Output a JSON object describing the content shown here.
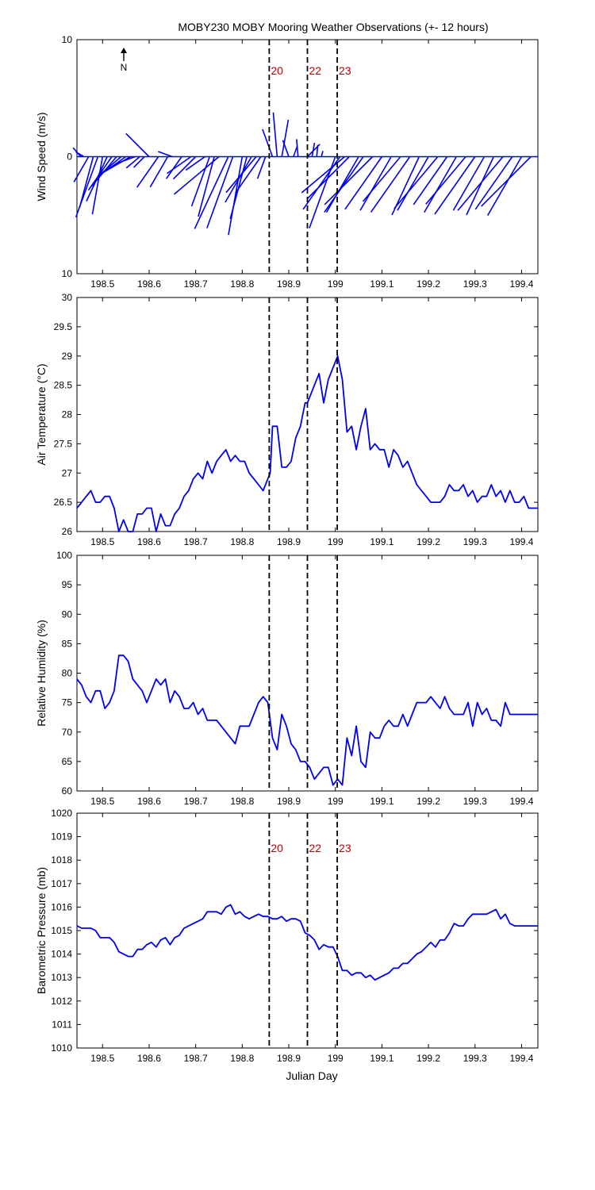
{
  "title": "MOBY230 MOBY Mooring Weather Observations (+- 12 hours)",
  "xlabel": "Julian Day",
  "north_label": "N",
  "colors": {
    "series": "#0000ee",
    "marker_line": "#000000",
    "marker_label": "#c00000"
  },
  "x_tick_labels": [
    "198.5",
    "198.6",
    "198.7",
    "198.8",
    "198.9",
    "199",
    "199.1",
    "199.2",
    "199.3",
    "199.4"
  ],
  "chart_data": [
    {
      "type": "line",
      "subtype": "wind-vector",
      "ylabel": "Wind Speed (m/s)",
      "xlim": [
        198.445,
        199.435
      ],
      "ylim": [
        -10,
        10
      ],
      "ytick_labels": [
        "10",
        "0",
        "10"
      ],
      "markers": [
        {
          "x": 198.858,
          "label": "20"
        },
        {
          "x": 198.94,
          "label": "22"
        },
        {
          "x": 199.004,
          "label": "23"
        }
      ],
      "series": [
        {
          "x": [
            198.453,
            198.46,
            198.47,
            198.48,
            198.49,
            198.5,
            198.51,
            198.52,
            198.53,
            198.54,
            198.55,
            198.56,
            198.57,
            198.58,
            198.59,
            198.6,
            198.62,
            198.64,
            198.65,
            198.67,
            198.69,
            198.7,
            198.72,
            198.73,
            198.74,
            198.75,
            198.77,
            198.78,
            198.8,
            198.81,
            198.82,
            198.83,
            198.84,
            198.85,
            198.865,
            198.875,
            198.885,
            198.9,
            198.91,
            198.92,
            198.94,
            198.95,
            198.96,
            198.97,
            199.0,
            199.01,
            199.02,
            199.03,
            199.05,
            199.06,
            199.08,
            199.1,
            199.12,
            199.14,
            199.16,
            199.18,
            199.2,
            199.22,
            199.24,
            199.26,
            199.28,
            199.3,
            199.32,
            199.34,
            199.36,
            199.38,
            199.4,
            199.42
          ],
          "dir": [
            320,
            300,
            210,
            195,
            200,
            190,
            205,
            215,
            220,
            230,
            235,
            240,
            250,
            230,
            225,
            315,
            215,
            210,
            290,
            215,
            235,
            225,
            235,
            200,
            195,
            230,
            205,
            200,
            190,
            195,
            210,
            220,
            215,
            200,
            340,
            355,
            10,
            340,
            20,
            355,
            45,
            10,
            5,
            15,
            200,
            215,
            230,
            225,
            210,
            215,
            225,
            215,
            210,
            220,
            215,
            205,
            210,
            220,
            215,
            210,
            220,
            215,
            210,
            205,
            220,
            215,
            210,
            225
          ],
          "speed": [
            1.0,
            0.8,
            2.5,
            4.5,
            5.5,
            5.0,
            4.2,
            3.5,
            3.3,
            2.5,
            2.2,
            2.8,
            1.7,
            1.5,
            1.3,
            2.8,
            3.2,
            3.0,
            1.3,
            2.3,
            2.5,
            2.7,
            2.0,
            4.5,
            5.3,
            5.0,
            6.8,
            6.5,
            6.8,
            5.5,
            4.5,
            4.0,
            3.8,
            2.0,
            2.5,
            3.8,
            3.2,
            1.5,
            1.0,
            1.5,
            1.5,
            1.2,
            1.0,
            0.5,
            6.5,
            5.5,
            4.8,
            5.0,
            5.5,
            5.8,
            5.8,
            5.5,
            5.3,
            5.0,
            5.8,
            5.5,
            5.3,
            5.8,
            5.0,
            5.5,
            5.3,
            6.0,
            5.3,
            5.5,
            6.0,
            5.5,
            5.8,
            6.0
          ]
        }
      ]
    },
    {
      "type": "line",
      "ylabel": "Air Temperature (°C)",
      "xlim": [
        198.445,
        199.435
      ],
      "ylim": [
        26,
        30
      ],
      "ytick_labels": [
        "26",
        "26.5",
        "27",
        "27.5",
        "28",
        "28.5",
        "29",
        "29.5",
        "30"
      ],
      "markers": [
        {
          "x": 198.858,
          "label": ""
        },
        {
          "x": 198.94,
          "label": ""
        },
        {
          "x": 199.004,
          "label": ""
        }
      ],
      "series": [
        {
          "x": [
            198.445,
            198.455,
            198.465,
            198.475,
            198.485,
            198.495,
            198.505,
            198.515,
            198.525,
            198.535,
            198.545,
            198.555,
            198.565,
            198.575,
            198.585,
            198.595,
            198.605,
            198.615,
            198.625,
            198.635,
            198.645,
            198.655,
            198.665,
            198.675,
            198.685,
            198.695,
            198.705,
            198.715,
            198.725,
            198.735,
            198.745,
            198.755,
            198.765,
            198.775,
            198.785,
            198.795,
            198.805,
            198.815,
            198.825,
            198.835,
            198.845,
            198.855,
            198.86,
            198.865,
            198.875,
            198.885,
            198.895,
            198.905,
            198.915,
            198.925,
            198.935,
            198.94,
            198.945,
            198.955,
            198.965,
            198.975,
            198.985,
            198.995,
            199.005,
            199.015,
            199.025,
            199.035,
            199.045,
            199.055,
            199.065,
            199.075,
            199.085,
            199.095,
            199.105,
            199.115,
            199.125,
            199.135,
            199.145,
            199.155,
            199.165,
            199.175,
            199.185,
            199.195,
            199.205,
            199.215,
            199.225,
            199.235,
            199.245,
            199.255,
            199.265,
            199.275,
            199.285,
            199.295,
            199.305,
            199.315,
            199.325,
            199.335,
            199.345,
            199.355,
            199.365,
            199.375,
            199.385,
            199.395,
            199.405,
            199.415,
            199.425,
            199.435
          ],
          "values": [
            26.4,
            26.5,
            26.6,
            26.7,
            26.5,
            26.5,
            26.6,
            26.6,
            26.4,
            26.0,
            26.2,
            26.0,
            26.0,
            26.3,
            26.3,
            26.4,
            26.4,
            26.0,
            26.3,
            26.1,
            26.1,
            26.3,
            26.4,
            26.6,
            26.7,
            26.9,
            27.0,
            26.9,
            27.2,
            27.0,
            27.2,
            27.3,
            27.4,
            27.2,
            27.3,
            27.2,
            27.2,
            27.0,
            26.9,
            26.8,
            26.7,
            26.9,
            27.0,
            27.8,
            27.8,
            27.1,
            27.1,
            27.2,
            27.6,
            27.8,
            28.2,
            28.2,
            28.3,
            28.5,
            28.7,
            28.2,
            28.6,
            28.8,
            29.0,
            28.6,
            27.7,
            27.8,
            27.4,
            27.8,
            28.1,
            27.4,
            27.5,
            27.4,
            27.4,
            27.1,
            27.4,
            27.3,
            27.1,
            27.2,
            27.0,
            26.8,
            26.7,
            26.6,
            26.5,
            26.5,
            26.5,
            26.6,
            26.8,
            26.7,
            26.7,
            26.8,
            26.6,
            26.7,
            26.5,
            26.6,
            26.6,
            26.8,
            26.6,
            26.7,
            26.5,
            26.7,
            26.5,
            26.5,
            26.6,
            26.4,
            26.4,
            26.4
          ]
        }
      ]
    },
    {
      "type": "line",
      "ylabel": "Relative Humidity (%)",
      "xlim": [
        198.445,
        199.435
      ],
      "ylim": [
        60,
        100
      ],
      "ytick_labels": [
        "60",
        "65",
        "70",
        "75",
        "80",
        "85",
        "90",
        "95",
        "100"
      ],
      "markers": [
        {
          "x": 198.858,
          "label": ""
        },
        {
          "x": 198.94,
          "label": ""
        },
        {
          "x": 199.004,
          "label": ""
        }
      ],
      "series": [
        {
          "x": [
            198.445,
            198.455,
            198.465,
            198.475,
            198.485,
            198.495,
            198.505,
            198.515,
            198.525,
            198.535,
            198.545,
            198.555,
            198.565,
            198.575,
            198.585,
            198.595,
            198.605,
            198.615,
            198.625,
            198.635,
            198.645,
            198.655,
            198.665,
            198.675,
            198.685,
            198.695,
            198.705,
            198.715,
            198.725,
            198.735,
            198.745,
            198.755,
            198.765,
            198.775,
            198.785,
            198.795,
            198.805,
            198.815,
            198.825,
            198.835,
            198.845,
            198.855,
            198.865,
            198.875,
            198.885,
            198.895,
            198.905,
            198.915,
            198.925,
            198.935,
            198.945,
            198.955,
            198.965,
            198.975,
            198.985,
            198.995,
            199.005,
            199.015,
            199.025,
            199.035,
            199.045,
            199.055,
            199.065,
            199.075,
            199.085,
            199.095,
            199.105,
            199.115,
            199.125,
            199.135,
            199.145,
            199.155,
            199.165,
            199.175,
            199.185,
            199.195,
            199.205,
            199.215,
            199.225,
            199.235,
            199.245,
            199.255,
            199.265,
            199.275,
            199.285,
            199.295,
            199.305,
            199.315,
            199.325,
            199.335,
            199.345,
            199.355,
            199.365,
            199.375,
            199.385,
            199.395,
            199.405,
            199.415,
            199.425,
            199.435
          ],
          "values": [
            79,
            78,
            76,
            75,
            77,
            77,
            74,
            75,
            77,
            83,
            83,
            82,
            79,
            78,
            77,
            75,
            77,
            79,
            78,
            79,
            75,
            77,
            76,
            74,
            74,
            75,
            73,
            74,
            72,
            72,
            72,
            71,
            70,
            69,
            68,
            71,
            71,
            71,
            73,
            75,
            76,
            75,
            69,
            67,
            73,
            71,
            68,
            67,
            65,
            65,
            64,
            62,
            63,
            64,
            64,
            61,
            62,
            61,
            69,
            66,
            71,
            65,
            64,
            70,
            69,
            69,
            71,
            72,
            71,
            71,
            73,
            71,
            73,
            75,
            75,
            75,
            76,
            75,
            74,
            76,
            74,
            73,
            73,
            73,
            75,
            71,
            75,
            73,
            74,
            72,
            72,
            71,
            75,
            73,
            73,
            73,
            73,
            73,
            73,
            73
          ]
        }
      ]
    },
    {
      "type": "line",
      "ylabel": "Barometric Pressure (mb)",
      "xlim": [
        198.445,
        199.435
      ],
      "ylim": [
        1010,
        1020
      ],
      "ytick_labels": [
        "1010",
        "1011",
        "1012",
        "1013",
        "1014",
        "1015",
        "1016",
        "1017",
        "1018",
        "1019",
        "1020"
      ],
      "markers": [
        {
          "x": 198.858,
          "label": "20"
        },
        {
          "x": 198.94,
          "label": "22"
        },
        {
          "x": 199.004,
          "label": "23"
        }
      ],
      "series": [
        {
          "x": [
            198.445,
            198.455,
            198.465,
            198.475,
            198.485,
            198.495,
            198.505,
            198.515,
            198.525,
            198.535,
            198.545,
            198.555,
            198.565,
            198.575,
            198.585,
            198.595,
            198.605,
            198.615,
            198.625,
            198.635,
            198.645,
            198.655,
            198.665,
            198.675,
            198.685,
            198.695,
            198.705,
            198.715,
            198.725,
            198.735,
            198.745,
            198.755,
            198.765,
            198.775,
            198.785,
            198.795,
            198.805,
            198.815,
            198.825,
            198.835,
            198.845,
            198.855,
            198.865,
            198.875,
            198.885,
            198.895,
            198.905,
            198.915,
            198.925,
            198.935,
            198.945,
            198.955,
            198.965,
            198.975,
            198.985,
            198.995,
            199.005,
            199.015,
            199.025,
            199.035,
            199.045,
            199.055,
            199.065,
            199.075,
            199.085,
            199.095,
            199.105,
            199.115,
            199.125,
            199.135,
            199.145,
            199.155,
            199.165,
            199.175,
            199.185,
            199.195,
            199.205,
            199.215,
            199.225,
            199.235,
            199.245,
            199.255,
            199.265,
            199.275,
            199.285,
            199.295,
            199.305,
            199.315,
            199.325,
            199.335,
            199.345,
            199.355,
            199.365,
            199.375,
            199.385,
            199.395,
            199.405,
            199.415,
            199.425,
            199.435
          ],
          "values": [
            1015.2,
            1015.1,
            1015.1,
            1015.1,
            1015.0,
            1014.7,
            1014.7,
            1014.7,
            1014.5,
            1014.1,
            1014.0,
            1013.9,
            1013.9,
            1014.2,
            1014.2,
            1014.4,
            1014.5,
            1014.3,
            1014.6,
            1014.7,
            1014.4,
            1014.7,
            1014.8,
            1015.1,
            1015.2,
            1015.3,
            1015.4,
            1015.5,
            1015.8,
            1015.8,
            1015.8,
            1015.7,
            1016.0,
            1016.1,
            1015.7,
            1015.8,
            1015.6,
            1015.5,
            1015.6,
            1015.7,
            1015.6,
            1015.6,
            1015.5,
            1015.5,
            1015.6,
            1015.4,
            1015.5,
            1015.5,
            1015.4,
            1014.9,
            1014.8,
            1014.6,
            1014.2,
            1014.4,
            1014.3,
            1014.3,
            1013.9,
            1013.3,
            1013.3,
            1013.1,
            1013.2,
            1013.2,
            1013.0,
            1013.1,
            1012.9,
            1013.0,
            1013.1,
            1013.2,
            1013.4,
            1013.4,
            1013.6,
            1013.6,
            1013.8,
            1014.0,
            1014.1,
            1014.3,
            1014.5,
            1014.3,
            1014.6,
            1014.6,
            1014.9,
            1015.3,
            1015.2,
            1015.2,
            1015.5,
            1015.7,
            1015.7,
            1015.7,
            1015.7,
            1015.8,
            1015.9,
            1015.5,
            1015.7,
            1015.3,
            1015.2,
            1015.2,
            1015.2,
            1015.2,
            1015.2,
            1015.2
          ]
        }
      ]
    }
  ]
}
